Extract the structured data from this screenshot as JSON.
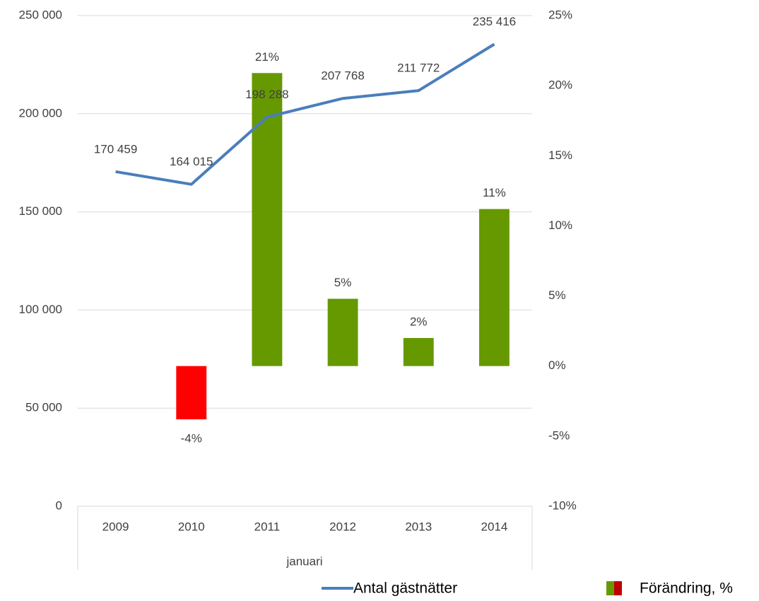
{
  "chart_data": {
    "type": "bar-line",
    "categories": [
      "2009",
      "2010",
      "2011",
      "2012",
      "2013",
      "2014"
    ],
    "group_label": "januari",
    "series": [
      {
        "name": "Antal gästnätter",
        "type": "line",
        "color": "#4a7ebb",
        "axis": "y",
        "values": [
          170459,
          164015,
          198288,
          207768,
          211772,
          235416
        ],
        "value_labels": [
          "170 459",
          "164 015",
          "198 288",
          "207 768",
          "211 772",
          "235 416"
        ]
      },
      {
        "name": "Förändring, %",
        "type": "bar",
        "color": "#669900",
        "negative_color": "#ff0000",
        "axis": "y2",
        "values": [
          null,
          -3.8,
          20.9,
          4.8,
          2.0,
          11.2
        ],
        "value_labels": [
          null,
          "-4%",
          "21%",
          "5%",
          "2%",
          "11%"
        ]
      }
    ],
    "ylim": [
      0,
      250000
    ],
    "yticks": [
      {
        "value": 0,
        "label": "0"
      },
      {
        "value": 50000,
        "label": "50 000"
      },
      {
        "value": 100000,
        "label": "100 000"
      },
      {
        "value": 150000,
        "label": "150 000"
      },
      {
        "value": 200000,
        "label": "200 000"
      },
      {
        "value": 250000,
        "label": "250 000"
      }
    ],
    "y2lim": [
      -10,
      25
    ],
    "y2ticks": [
      {
        "value": -10,
        "label": "-10%"
      },
      {
        "value": -5,
        "label": "-5%"
      },
      {
        "value": 0,
        "label": "0%"
      },
      {
        "value": 5,
        "label": "5%"
      },
      {
        "value": 10,
        "label": "10%"
      },
      {
        "value": 15,
        "label": "15%"
      },
      {
        "value": 20,
        "label": "20%"
      },
      {
        "value": 25,
        "label": "25%"
      }
    ],
    "grid": true
  }
}
